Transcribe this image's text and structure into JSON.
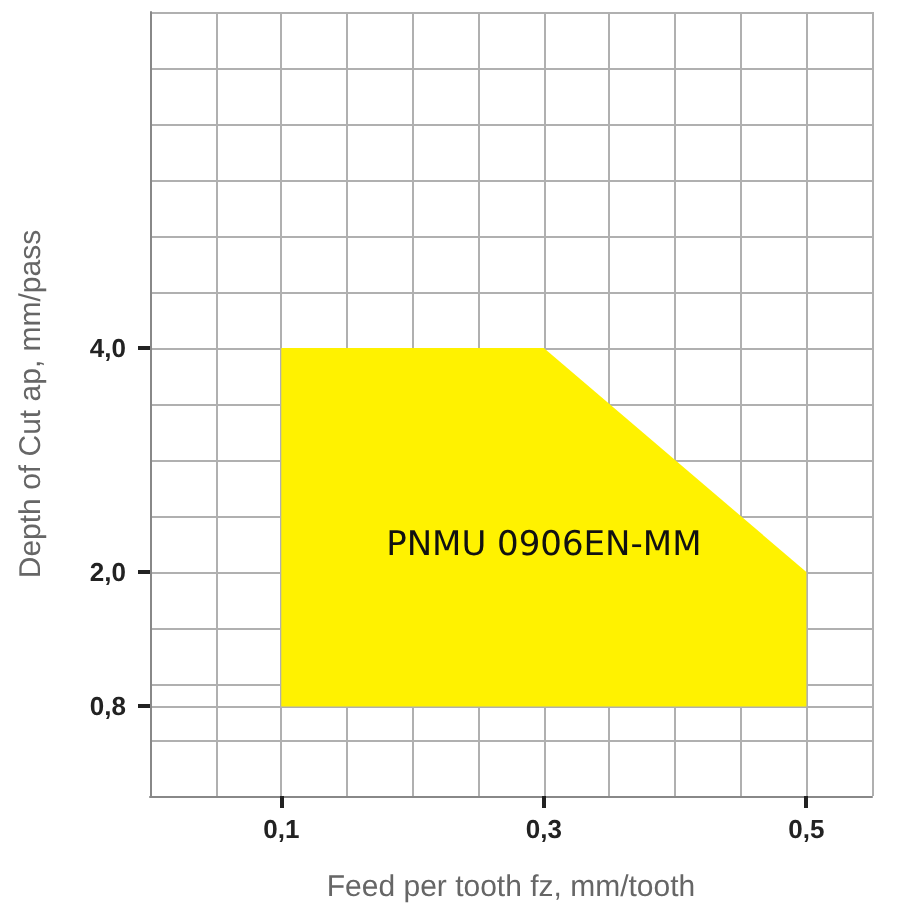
{
  "chart_data": {
    "type": "area",
    "xlabel": "Feed per tooth fz, mm/tooth",
    "ylabel": "Depth of Cut ap, mm/pass",
    "series": [
      {
        "color": "#fff200",
        "x": [
          0.1,
          0.1,
          0.3,
          0.5,
          0.5
        ],
        "values": [
          0.8,
          4.0,
          4.0,
          2.0,
          0.8
        ]
      }
    ],
    "xlim": [
      0,
      0.55
    ],
    "xticks": [
      {
        "value": 0,
        "label": null
      },
      {
        "value": 0.05,
        "label": null
      },
      {
        "value": 0.1,
        "label": "0,1"
      },
      {
        "value": 0.15,
        "label": null
      },
      {
        "value": 0.2,
        "label": null
      },
      {
        "value": 0.25,
        "label": null
      },
      {
        "value": 0.3,
        "label": "0,3"
      },
      {
        "value": 0.35,
        "label": null
      },
      {
        "value": 0.4,
        "label": null
      },
      {
        "value": 0.45,
        "label": null
      },
      {
        "value": 0.5,
        "label": "0,5"
      },
      {
        "value": 0.55,
        "label": null
      }
    ],
    "ylim": [
      0,
      7
    ],
    "yticks": [
      {
        "value": 0,
        "label": null
      },
      {
        "value": 0.5,
        "label": null
      },
      {
        "value": 0.8,
        "label": "0,8"
      },
      {
        "value": 1.0,
        "label": null
      },
      {
        "value": 1.5,
        "label": null
      },
      {
        "value": 2.0,
        "label": "2,0"
      },
      {
        "value": 2.5,
        "label": null
      },
      {
        "value": 3.0,
        "label": null
      },
      {
        "value": 3.5,
        "label": null
      },
      {
        "value": 4.0,
        "label": "4,0"
      },
      {
        "value": 4.5,
        "label": null
      },
      {
        "value": 5.0,
        "label": null
      },
      {
        "value": 5.5,
        "label": null
      },
      {
        "value": 6.0,
        "label": null
      },
      {
        "value": 6.5,
        "label": null
      },
      {
        "value": 7.0,
        "label": null
      }
    ],
    "grid": true,
    "annotations": [
      "PNMU 0906EN-MM"
    ]
  }
}
